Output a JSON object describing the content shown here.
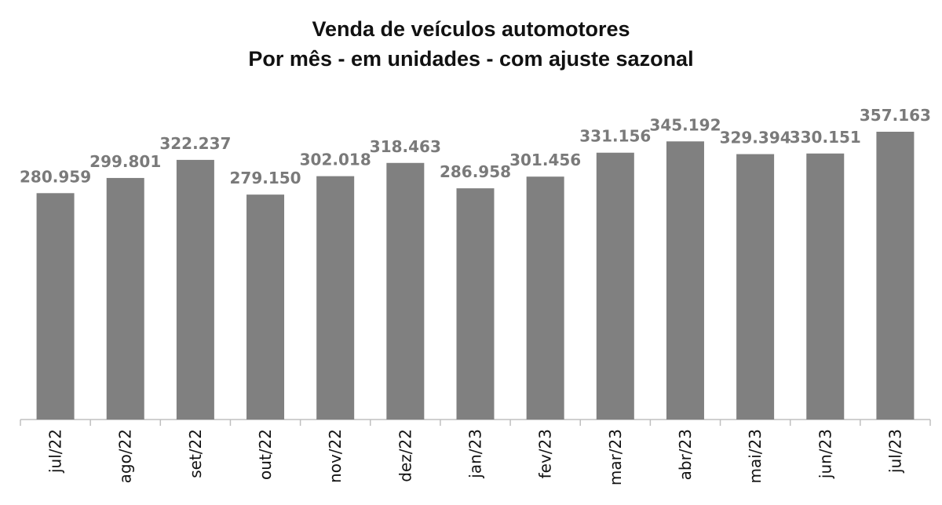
{
  "chart_data": {
    "type": "bar",
    "title": "Venda de veículos automotores",
    "subtitle": "Por mês - em unidades - com ajuste sazonal",
    "xlabel": "",
    "ylabel": "",
    "categories": [
      "jul/22",
      "ago/22",
      "set/22",
      "out/22",
      "nov/22",
      "dez/22",
      "jan/23",
      "fev/23",
      "mar/23",
      "abr/23",
      "mai/23",
      "jun/23",
      "jul/23"
    ],
    "values": [
      280959,
      299801,
      322237,
      279150,
      302018,
      318463,
      286958,
      301456,
      331156,
      345192,
      329394,
      330151,
      357163
    ],
    "value_labels": [
      "280.959",
      "299.801",
      "322.237",
      "279.150",
      "302.018",
      "318.463",
      "286.958",
      "301.456",
      "331.156",
      "345.192",
      "329.394",
      "330.151",
      "357.163"
    ],
    "ylim": [
      0,
      357163
    ],
    "grid": false,
    "legend": "none",
    "colors": {
      "bar": "#808080",
      "data_label": "#7a7a7a",
      "axis": "#bfbfbf",
      "text": "#111111"
    }
  }
}
